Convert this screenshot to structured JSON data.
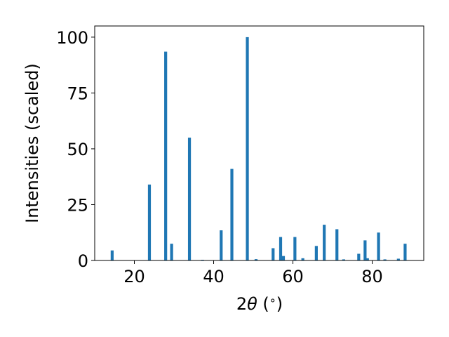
{
  "chart_data": {
    "type": "bar",
    "xlabel": "2θ (°)",
    "xlabel_parts": {
      "prefix": "2",
      "symbol": "θ",
      "suffix": " (",
      "unit": "∘",
      "close": ")"
    },
    "ylabel": "Intensities (scaled)",
    "xlim": [
      10,
      93
    ],
    "ylim": [
      0,
      105
    ],
    "xticks": [
      20,
      40,
      60,
      80
    ],
    "yticks": [
      0,
      25,
      50,
      75,
      100
    ],
    "bar_color": "#1f77b4",
    "grid": false,
    "legend": "none",
    "bars": [
      {
        "x": 14.4,
        "y": 4.5
      },
      {
        "x": 23.8,
        "y": 34.0
      },
      {
        "x": 27.9,
        "y": 93.5
      },
      {
        "x": 29.4,
        "y": 7.5
      },
      {
        "x": 33.9,
        "y": 55.0
      },
      {
        "x": 37.2,
        "y": 0.3
      },
      {
        "x": 41.9,
        "y": 13.5
      },
      {
        "x": 44.6,
        "y": 41.0
      },
      {
        "x": 48.5,
        "y": 100.0
      },
      {
        "x": 50.7,
        "y": 0.6
      },
      {
        "x": 55.0,
        "y": 5.5
      },
      {
        "x": 56.9,
        "y": 10.5
      },
      {
        "x": 57.6,
        "y": 2.0
      },
      {
        "x": 60.5,
        "y": 10.5
      },
      {
        "x": 62.5,
        "y": 1.0
      },
      {
        "x": 65.9,
        "y": 6.5
      },
      {
        "x": 67.9,
        "y": 16.0
      },
      {
        "x": 71.1,
        "y": 14.0
      },
      {
        "x": 72.8,
        "y": 0.5
      },
      {
        "x": 76.6,
        "y": 3.0
      },
      {
        "x": 78.2,
        "y": 9.0
      },
      {
        "x": 78.8,
        "y": 1.0
      },
      {
        "x": 81.6,
        "y": 12.5
      },
      {
        "x": 83.2,
        "y": 0.5
      },
      {
        "x": 86.6,
        "y": 0.8
      },
      {
        "x": 88.3,
        "y": 7.5
      }
    ]
  }
}
